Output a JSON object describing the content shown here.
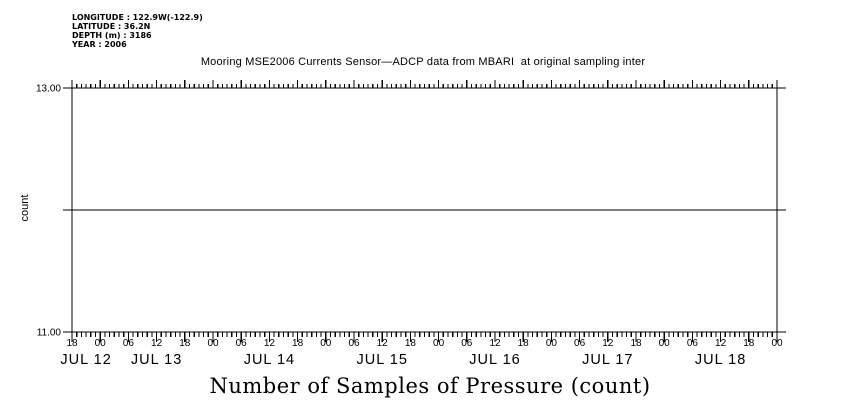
{
  "meta": {
    "longitude": "LONGITUDE : 122.9W(-122.9)",
    "latitude": "LATITUDE : 36.2N",
    "depth": "DEPTH (m) : 3186",
    "year": "YEAR : 2006"
  },
  "colors": {
    "foreground": "#000000",
    "background": "#ffffff"
  },
  "chart_data": {
    "type": "line",
    "title": "Mooring MSE2006 Currents Sensor—ADCP data from MBARI  at original sampling inter",
    "xlabel": "Number of Samples of Pressure (count)",
    "ylabel": "count",
    "ylim": [
      11.0,
      13.0
    ],
    "yticks": [
      {
        "value": 13.0,
        "label": "13.00"
      },
      {
        "value": 12.0,
        "label": ""
      },
      {
        "value": 11.0,
        "label": "11.00"
      }
    ],
    "grid": false,
    "frame": "box-with-mirrored-ticks",
    "x_axis": {
      "total_hours": 150,
      "minor_tick_interval_hours": 1,
      "major_tick_interval_hours": 6,
      "hour_tick_labels": [
        "18",
        "00",
        "06",
        "12",
        "18",
        "00",
        "06",
        "12",
        "18",
        "00",
        "06",
        "12",
        "18",
        "00",
        "06",
        "12",
        "18",
        "00",
        "06",
        "12",
        "18",
        "00",
        "06",
        "12",
        "18",
        "00"
      ],
      "day_labels": [
        {
          "label": "JUL 12",
          "hour": 3
        },
        {
          "label": "JUL 13",
          "hour": 18
        },
        {
          "label": "JUL 14",
          "hour": 42
        },
        {
          "label": "JUL 15",
          "hour": 66
        },
        {
          "label": "JUL 16",
          "hour": 90
        },
        {
          "label": "JUL 17",
          "hour": 114
        },
        {
          "label": "JUL 18",
          "hour": 138
        }
      ]
    },
    "series": [
      {
        "name": "number-of-samples-of-pressure",
        "constant_value": 12,
        "x_range_hours": [
          0,
          150
        ]
      }
    ]
  }
}
